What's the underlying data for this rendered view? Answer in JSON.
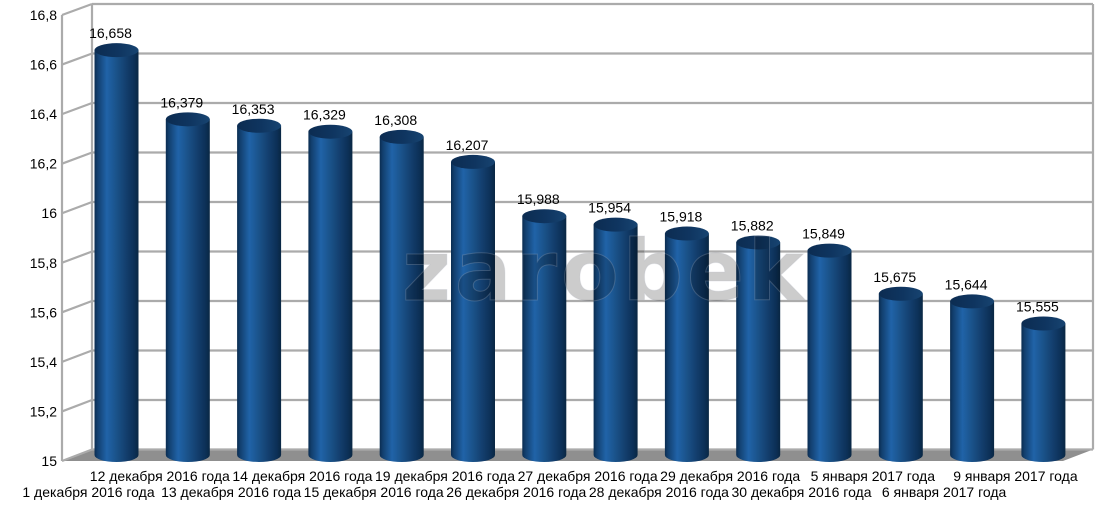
{
  "chart_data": {
    "type": "bar",
    "style": "3d-cylinder",
    "title": "",
    "categories": [
      "1 декабря 2016 года",
      "12 декабря 2016 года",
      "13 декабря 2016 года",
      "14 декабря 2016 года",
      "15 декабря 2016 года",
      "19 декабря 2016 года",
      "26 декабря 2016 года",
      "27 декабря 2016 года",
      "28 декабря 2016 года",
      "29 декабря 2016 года",
      "30 декабря 2016 года",
      "5 января 2017 года",
      "6 января 2017 года",
      "9 января 2017 года"
    ],
    "values": [
      16.658,
      16.379,
      16.353,
      16.329,
      16.308,
      16.207,
      15.988,
      15.954,
      15.918,
      15.882,
      15.849,
      15.675,
      15.644,
      15.555
    ],
    "value_labels": [
      "16,658",
      "16,379",
      "16,353",
      "16,329",
      "16,308",
      "16,207",
      "15,988",
      "15,954",
      "15,918",
      "15,882",
      "15,849",
      "15,675",
      "15,644",
      "15,555"
    ],
    "y_ticks": [
      "16,8",
      "16,6",
      "16,4",
      "16,2",
      "16",
      "15,8",
      "15,6",
      "15,4",
      "15,2",
      "15"
    ],
    "ylim": [
      15,
      16.8
    ],
    "y_tick_step": 0.2,
    "xlabel": "",
    "ylabel": "",
    "grid": true,
    "legend": "none",
    "decimal_separator": ","
  },
  "watermark": {
    "text": "zarobek"
  },
  "colors": {
    "background": "#FFFFFF",
    "grid": "#ABABAB",
    "floor": "#8F8F8F",
    "bar_dark_edge": "#0A2C50",
    "bar_highlight": "#2063A8",
    "bar_mid": "#1A5289",
    "bar_top": "#0F3560",
    "label_text": "#000000"
  }
}
